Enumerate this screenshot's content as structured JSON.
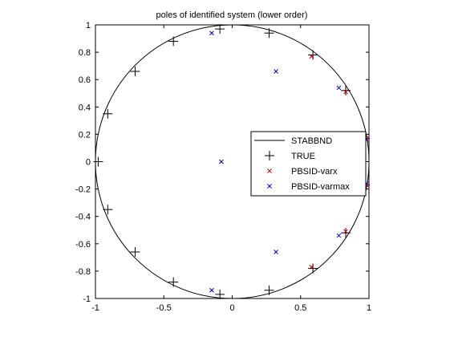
{
  "chart_data": {
    "type": "scatter",
    "title": "poles of identified system (lower order)",
    "xlabel": "",
    "ylabel": "",
    "xlim": [
      -1,
      1
    ],
    "ylim": [
      -1,
      1
    ],
    "xticks": [
      -1,
      -0.5,
      0,
      0.5,
      1
    ],
    "xtick_labels": [
      "-1",
      "-0.5",
      "0",
      "0.5",
      "1"
    ],
    "yticks": [
      -1,
      -0.8,
      -0.6,
      -0.4,
      -0.2,
      0,
      0.2,
      0.4,
      0.6,
      0.8,
      1
    ],
    "ytick_labels": [
      "-1",
      "-0.8",
      "-0.6",
      "-0.4",
      "-0.2",
      "0",
      "0.2",
      "0.4",
      "0.6",
      "0.8",
      "1"
    ],
    "grid": false,
    "legend_position": "right",
    "series": [
      {
        "name": "STABBND",
        "kind": "unit-circle",
        "color": "#000000"
      },
      {
        "name": "TRUE",
        "marker": "plus",
        "color": "#000000",
        "points": [
          [
            0.97,
            0.17
          ],
          [
            0.83,
            0.52
          ],
          [
            0.59,
            0.78
          ],
          [
            0.27,
            0.94
          ],
          [
            -0.09,
            0.97
          ],
          [
            -0.43,
            0.88
          ],
          [
            -0.71,
            0.66
          ],
          [
            -0.91,
            0.35
          ],
          [
            -0.98,
            0.0
          ],
          [
            -0.91,
            -0.35
          ],
          [
            -0.71,
            -0.66
          ],
          [
            -0.43,
            -0.88
          ],
          [
            -0.09,
            -0.97
          ],
          [
            0.27,
            -0.94
          ],
          [
            0.59,
            -0.78
          ],
          [
            0.83,
            -0.52
          ],
          [
            0.97,
            -0.17
          ]
        ]
      },
      {
        "name": "PBSID-varx",
        "marker": "x",
        "color": "#cc0000",
        "points": [
          [
            0.98,
            0.17
          ],
          [
            0.83,
            0.51
          ],
          [
            0.58,
            0.77
          ],
          [
            0.98,
            -0.17
          ],
          [
            0.83,
            -0.51
          ],
          [
            0.58,
            -0.77
          ]
        ]
      },
      {
        "name": "PBSID-varmax",
        "marker": "x",
        "color": "#0000cc",
        "points": [
          [
            -0.08,
            0.0
          ],
          [
            0.32,
            0.66
          ],
          [
            0.32,
            -0.66
          ],
          [
            0.78,
            0.54
          ],
          [
            0.78,
            -0.54
          ],
          [
            -0.15,
            0.94
          ],
          [
            -0.15,
            -0.94
          ],
          [
            0.98,
            0.16
          ],
          [
            0.98,
            -0.16
          ]
        ]
      }
    ]
  }
}
